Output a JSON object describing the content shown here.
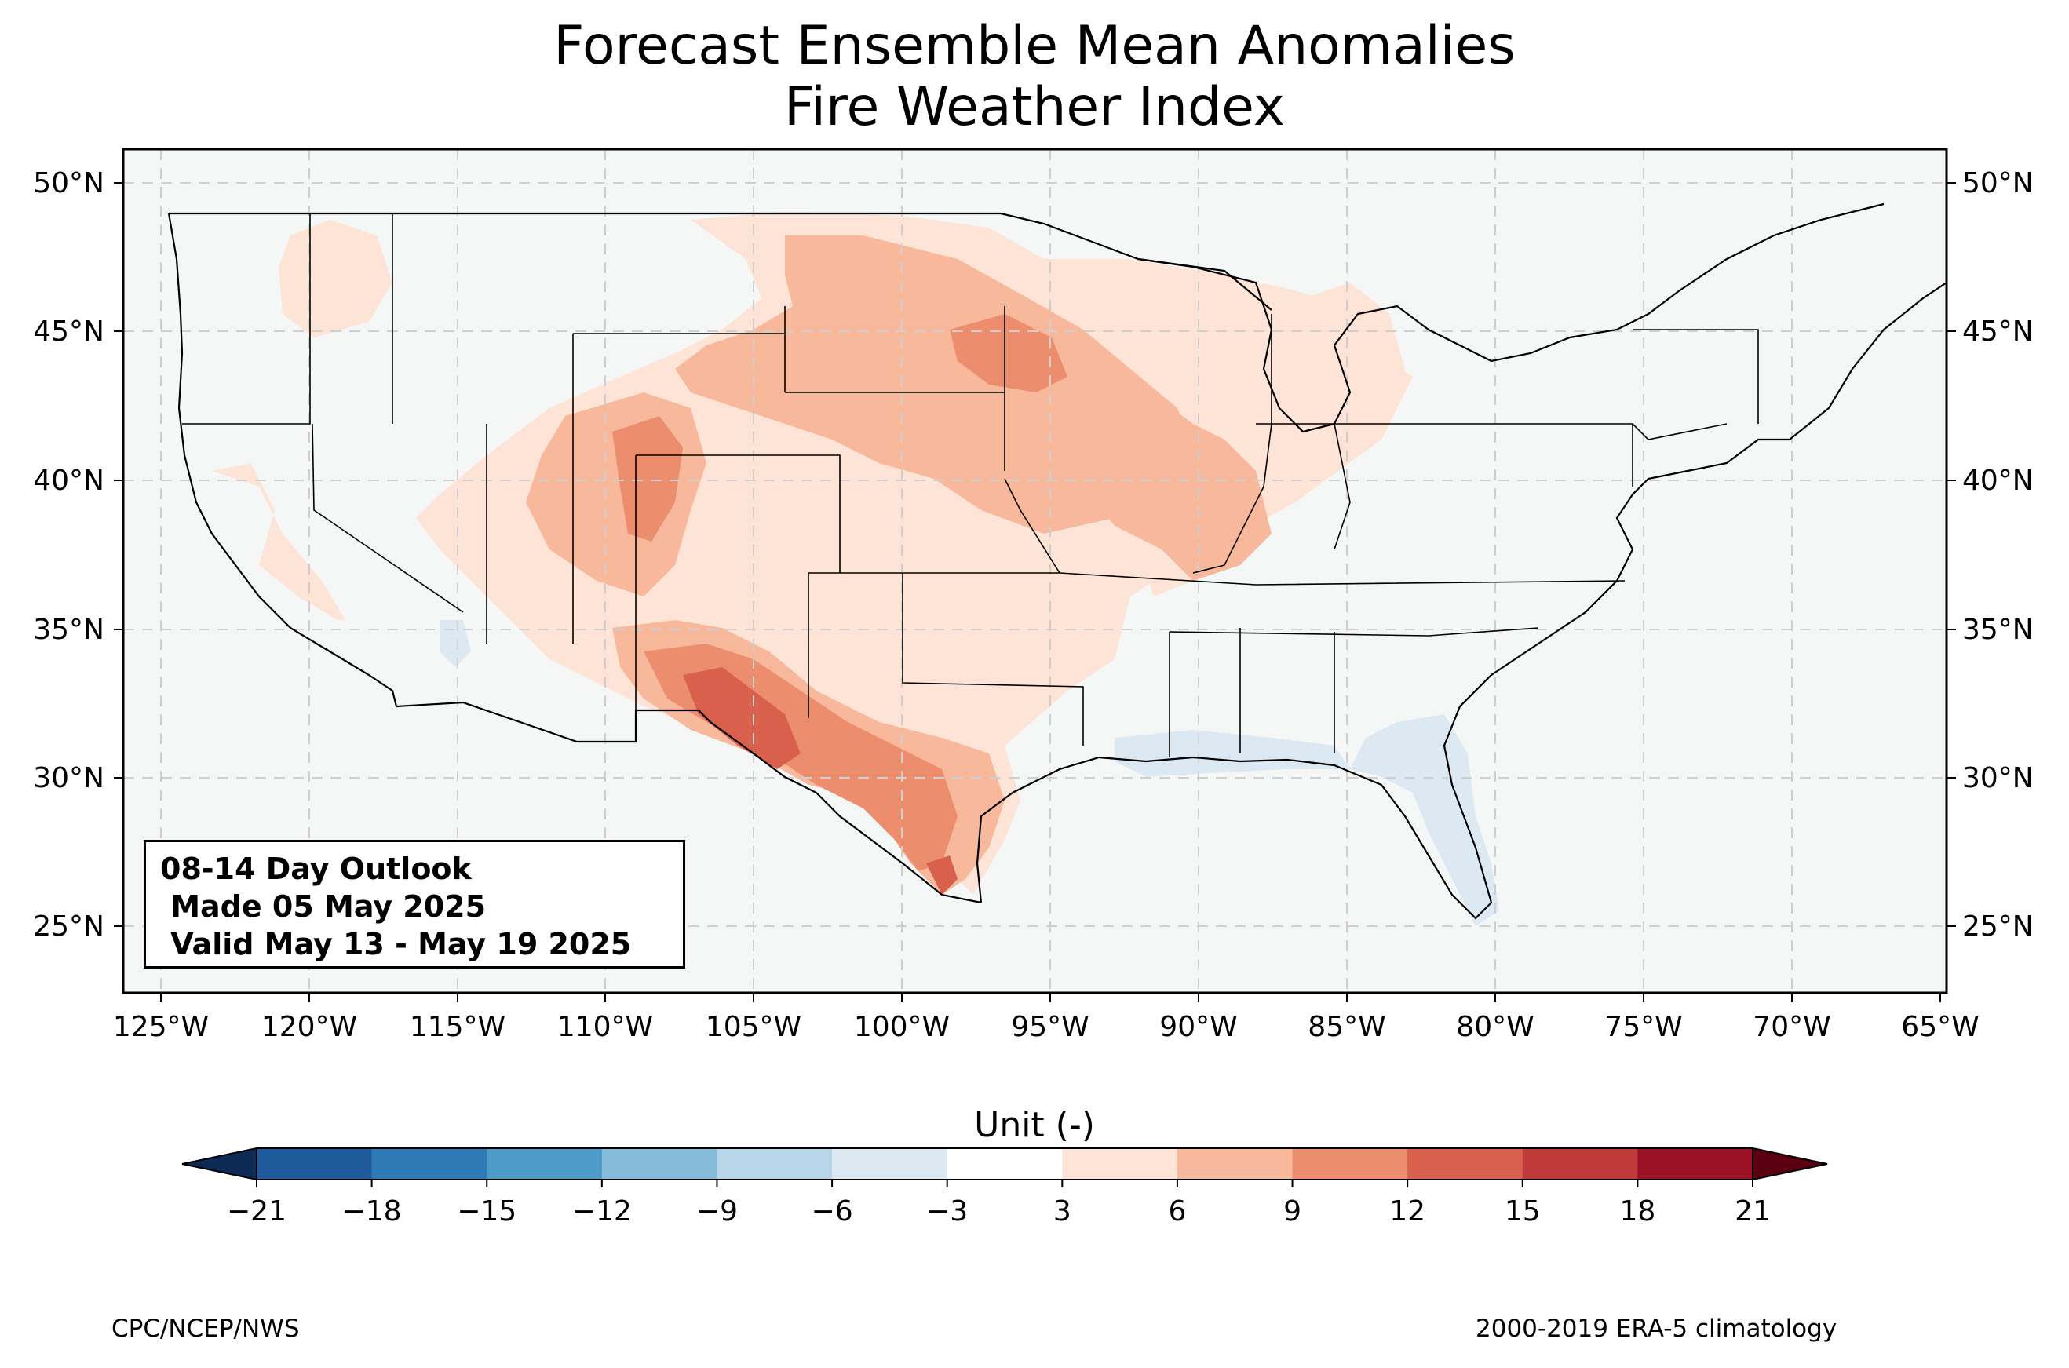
{
  "title_line1": "Forecast Ensemble Mean Anomalies",
  "title_line2": "Fire Weather Index",
  "lat_labels": [
    "50°N",
    "45°N",
    "40°N",
    "35°N",
    "30°N",
    "25°N"
  ],
  "lon_labels": [
    "125°W",
    "120°W",
    "115°W",
    "110°W",
    "105°W",
    "100°W",
    "95°W",
    "90°W",
    "85°W",
    "80°W",
    "75°W",
    "70°W",
    "65°W"
  ],
  "outlook": {
    "line1": "08-14 Day Outlook",
    "line2": " Made 05 May 2025",
    "line3": " Valid May 13 - May 19 2025"
  },
  "colorbar": {
    "label": "Unit (-)",
    "ticks": [
      "−21",
      "−18",
      "−15",
      "−12",
      "−9",
      "−6",
      "−3",
      "3",
      "6",
      "9",
      "12",
      "15",
      "18",
      "21"
    ],
    "colors": [
      "#1f5a9c",
      "#2f79b5",
      "#4e9bc9",
      "#86bcda",
      "#b8d6e8",
      "#dde9f2",
      "#ffffff",
      "#fde4d6",
      "#f7b89b",
      "#ec8e6e",
      "#d8604d",
      "#c03a3a",
      "#9a1024"
    ],
    "under_color": "#0d2a55",
    "over_color": "#5a0010"
  },
  "footer_left": "CPC/NCEP/NWS",
  "footer_right": "2000-2019 ERA-5 climatology"
}
